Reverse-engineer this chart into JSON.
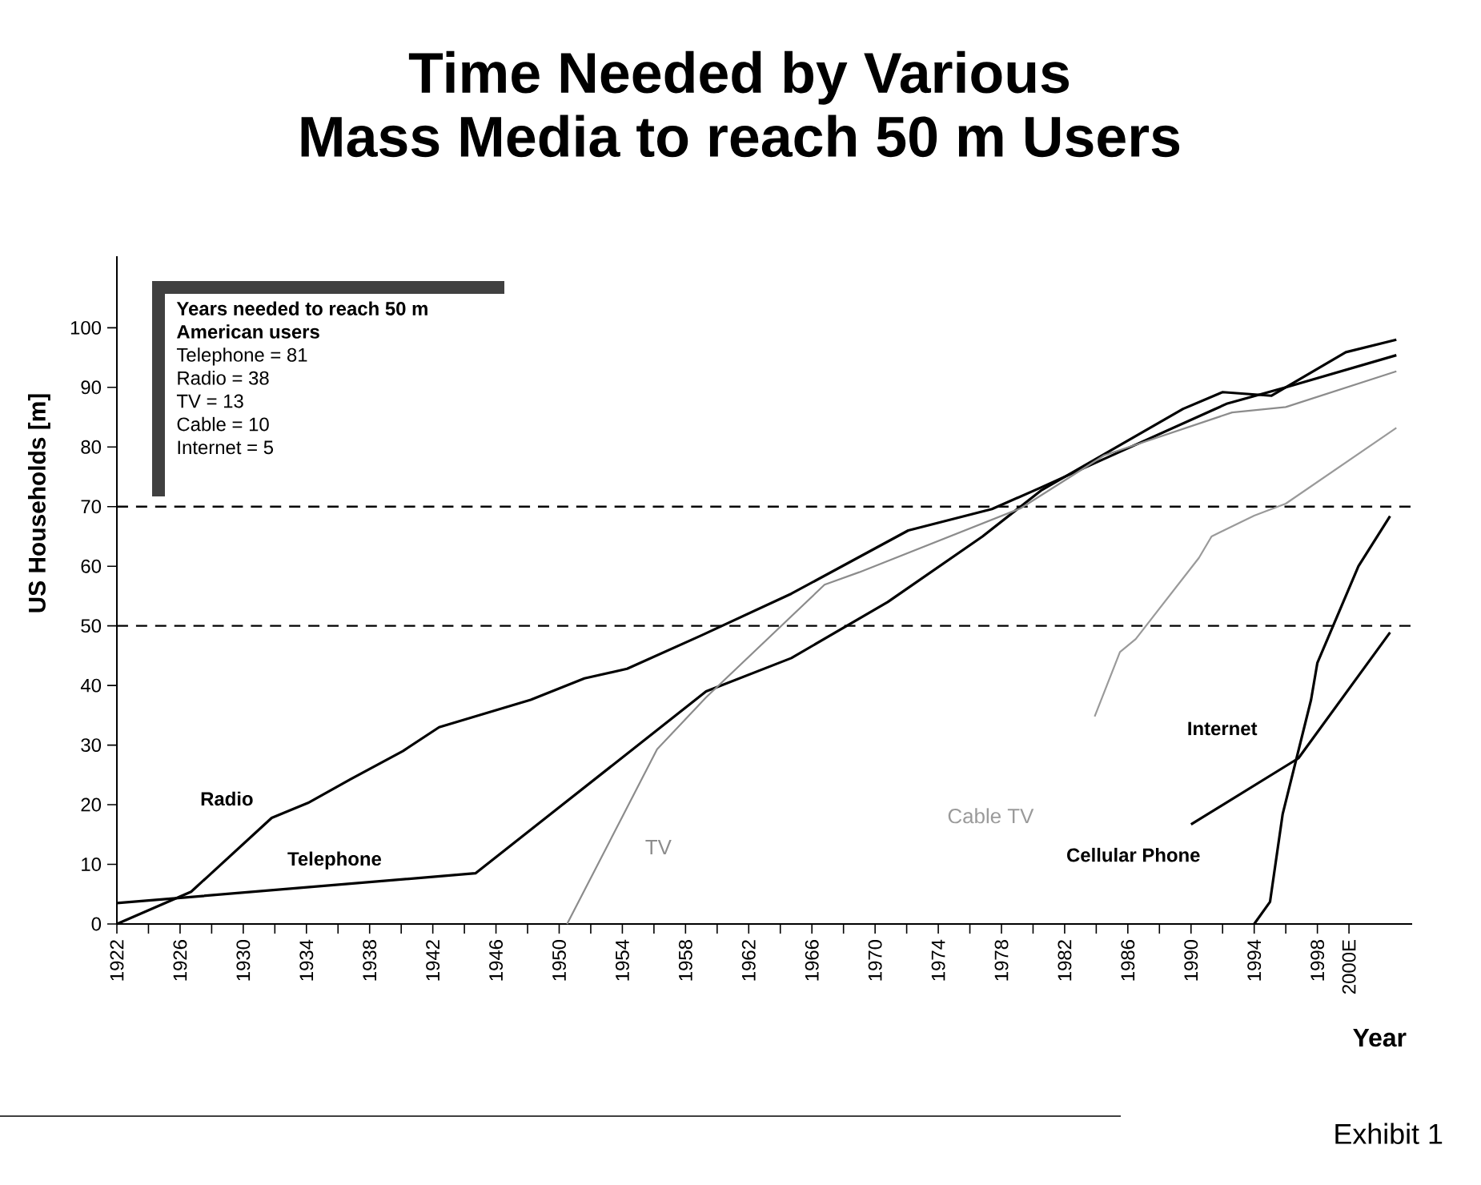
{
  "chart_data": {
    "type": "line",
    "title": "Time Needed by Various Mass Media to reach 50 m Users",
    "xlabel": "Year",
    "ylabel": "US Households [m]",
    "xlim": [
      1922,
      2004
    ],
    "ylim": [
      0,
      112
    ],
    "xticks": [
      1922,
      {
        "value": 1924,
        "label": null
      },
      1926,
      {
        "value": 1928,
        "label": null
      },
      1930,
      {
        "value": 1932,
        "label": null
      },
      1934,
      {
        "value": 1936,
        "label": null
      },
      1938,
      {
        "value": 1940,
        "label": null
      },
      1942,
      {
        "value": 1944,
        "label": null
      },
      1946,
      {
        "value": 1948,
        "label": null
      },
      1950,
      {
        "value": 1952,
        "label": null
      },
      1954,
      {
        "value": 1956,
        "label": null
      },
      1958,
      {
        "value": 1960,
        "label": null
      },
      1962,
      {
        "value": 1964,
        "label": null
      },
      1966,
      {
        "value": 1968,
        "label": null
      },
      1970,
      {
        "value": 1972,
        "label": null
      },
      1974,
      {
        "value": 1976,
        "label": null
      },
      1978,
      {
        "value": 1980,
        "label": null
      },
      1982,
      {
        "value": 1984,
        "label": null
      },
      1986,
      {
        "value": 1988,
        "label": null
      },
      1990,
      {
        "value": 1992,
        "label": null
      },
      1994,
      {
        "value": 1996,
        "label": null
      },
      1998,
      {
        "value": 2000,
        "label": "2000E"
      }
    ],
    "yticks": [
      0,
      10,
      20,
      30,
      40,
      50,
      60,
      70,
      80,
      90,
      100
    ],
    "series": [
      {
        "name": "Radio",
        "color": "#000000",
        "x": [
          1922,
          1926.7,
          1931.8,
          1934.1,
          1936.8,
          1940.1,
          1942.4,
          1948.2,
          1951.6,
          1954.3,
          1959,
          1964.7,
          1972.1,
          1977.4,
          1980.5,
          1984.5,
          1992.3,
          1996,
          2003
        ],
        "values": [
          0,
          5.4,
          17.8,
          20.3,
          24.3,
          29,
          33,
          37.6,
          41.2,
          42.8,
          48.4,
          55.4,
          66,
          69.6,
          73.2,
          78,
          87.3,
          90,
          95.4
        ]
      },
      {
        "name": "Telephone",
        "color": "#000000",
        "x": [
          1922,
          1944.7,
          1959.3,
          1964.7,
          1970.8,
          1976.8,
          1980.5,
          1989.5,
          1992,
          1995.1,
          1999.8,
          2003
        ],
        "values": [
          3.5,
          8.5,
          39,
          44.6,
          54,
          65,
          72.7,
          86.4,
          89.2,
          88.6,
          95.9,
          98
        ]
      },
      {
        "name": "TV",
        "color": "#8c8c8c",
        "x": [
          1950.5,
          1956.2,
          1959.3,
          1966.8,
          1969,
          1979.2,
          1984.5,
          1992.6,
          1996,
          2003
        ],
        "values": [
          0,
          29.3,
          38,
          56.9,
          59,
          69.7,
          78.6,
          85.8,
          86.7,
          92.7
        ]
      },
      {
        "name": "Cable TV",
        "color": "#9a9a9a",
        "x": [
          1983.9,
          1985.5,
          1986.5,
          1990.5,
          1991.3,
          1994,
          1996,
          2003
        ],
        "values": [
          34.8,
          45.6,
          47.8,
          61.4,
          65,
          68.5,
          70.5,
          83.2
        ]
      },
      {
        "name": "Internet",
        "color": "#000000",
        "x": [
          1994,
          1995,
          1995.8,
          1997.6,
          1998,
          2000.6,
          2002.6
        ],
        "values": [
          0,
          3.7,
          18.4,
          37.6,
          43.8,
          60,
          68.4
        ]
      },
      {
        "name": "Cellular Phone",
        "color": "#000000",
        "x": [
          1990,
          1996.8,
          2002.6
        ],
        "values": [
          16.7,
          27.8,
          48.9
        ]
      }
    ],
    "ref_lines": [
      {
        "axis": "y",
        "value": 50,
        "color": "#000000",
        "line_style": "dashed"
      },
      {
        "axis": "y",
        "value": 70,
        "color": "#000000",
        "line_style": "dashed"
      }
    ],
    "annotations": [
      "Years needed to reach 50 m American users",
      "Telephone = 81",
      "Radio = 38",
      "TV = 13",
      "Cable = 10",
      "Internet = 5",
      "Exhibit 1"
    ]
  }
}
